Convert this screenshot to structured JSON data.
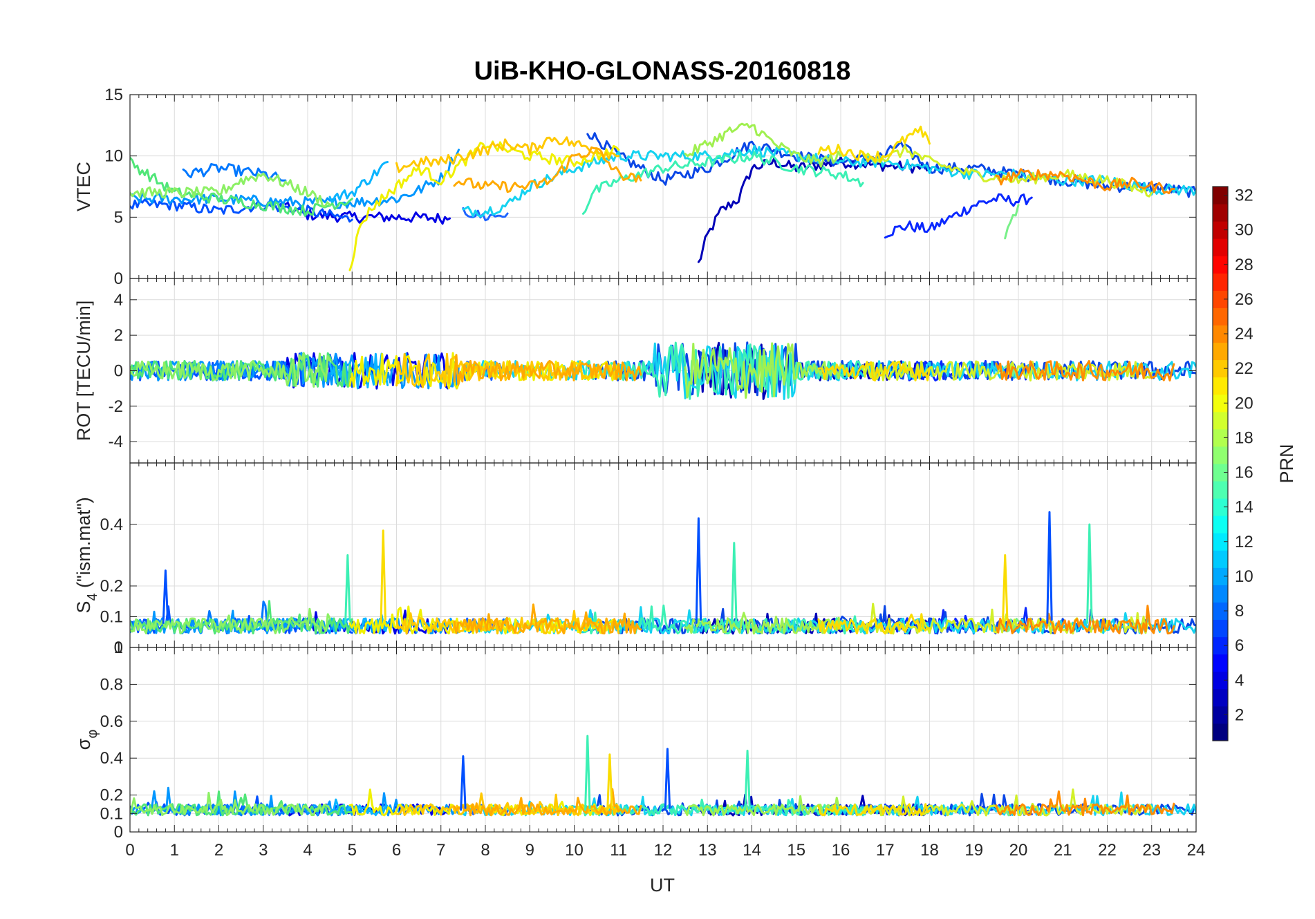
{
  "chart_data": {
    "type": "line",
    "title": "UiB-KHO-GLONASS-20160818",
    "xlabel": "UT",
    "xlim": [
      0,
      24
    ],
    "xticks": [
      0,
      1,
      2,
      3,
      4,
      5,
      6,
      7,
      8,
      9,
      10,
      11,
      12,
      13,
      14,
      15,
      16,
      17,
      18,
      19,
      20,
      21,
      22,
      23,
      24
    ],
    "panels": [
      {
        "id": "vtec",
        "ylabel": "VTEC",
        "ylim": [
          0,
          15
        ],
        "yticks": [
          0,
          5,
          10,
          15
        ],
        "ytick_labels": [
          "0",
          "5",
          "10",
          "15"
        ]
      },
      {
        "id": "rot",
        "ylabel": "ROT [TECU/min]",
        "ylim": [
          -5.2,
          5.2
        ],
        "yticks": [
          -4,
          -2,
          0,
          2,
          4
        ],
        "ytick_labels": [
          "-4",
          "-2",
          "0",
          "2",
          "4"
        ]
      },
      {
        "id": "s4",
        "ylabel": "S",
        "ylabel_sub": "4",
        "ylabel_suffix": " (\"ism.mat\")",
        "ylim": [
          0,
          0.6
        ],
        "yticks": [
          0,
          0.1,
          0.2,
          0.4
        ],
        "ytick_labels": [
          "0",
          "0.1",
          "0.2",
          "0.4"
        ],
        "extra_tick_label": "1"
      },
      {
        "id": "sigma",
        "ylabel": "σ",
        "ylabel_sub": "φ",
        "ylim": [
          0,
          1
        ],
        "yticks": [
          0,
          0.1,
          0.2,
          0.4,
          0.6,
          0.8
        ],
        "ytick_labels": [
          "0",
          "0.1",
          "0.2",
          "0.4",
          "0.6",
          "0.8"
        ]
      }
    ],
    "colorbar": {
      "label": "PRN",
      "range": [
        1,
        32
      ],
      "ticks": [
        2,
        4,
        6,
        8,
        10,
        12,
        14,
        16,
        18,
        20,
        22,
        24,
        26,
        28,
        30,
        32
      ],
      "tick_labels": [
        "2",
        "4",
        "6",
        "8",
        "10",
        "12",
        "14",
        "16",
        "18",
        "20",
        "22",
        "24",
        "26",
        "28",
        "30",
        "32"
      ],
      "colormap": "jet"
    },
    "series": [
      {
        "prn": 2,
        "name": "PRN 2",
        "color": "#0000b8",
        "vtec": [
          [
            12.8,
            1.2
          ],
          [
            13,
            3.5
          ],
          [
            13.3,
            5.5
          ],
          [
            13.7,
            6.5
          ],
          [
            14,
            9
          ],
          [
            14.5,
            9.5
          ],
          [
            15,
            9
          ],
          [
            16,
            9.5
          ],
          [
            17,
            9.2
          ],
          [
            18,
            9
          ]
        ]
      },
      {
        "prn": 3,
        "name": "PRN 3",
        "color": "#0000e6",
        "vtec": [
          [
            3.5,
            5.8
          ],
          [
            4,
            5.2
          ],
          [
            5,
            5
          ],
          [
            6,
            5
          ],
          [
            7.2,
            4.9
          ]
        ]
      },
      {
        "prn": 4,
        "name": "PRN 4",
        "color": "#0a28ff",
        "vtec": [
          [
            17,
            3.7
          ],
          [
            17.5,
            4.3
          ],
          [
            18,
            4
          ],
          [
            18.5,
            5
          ],
          [
            19,
            6
          ],
          [
            19.5,
            6.5
          ],
          [
            20,
            6.3
          ],
          [
            20.3,
            6.6
          ]
        ]
      },
      {
        "prn": 5,
        "name": "PRN 5",
        "color": "#0050ff",
        "vtec": [
          [
            0,
            6
          ],
          [
            1,
            6
          ],
          [
            2,
            5.5
          ],
          [
            3,
            6
          ],
          [
            4,
            5.5
          ],
          [
            5,
            4.8
          ]
        ]
      },
      {
        "prn": 6,
        "name": "PRN 6",
        "color": "#0a46e6",
        "vtec": [
          [
            10.3,
            12
          ],
          [
            11,
            10
          ],
          [
            12,
            8
          ],
          [
            13,
            9
          ],
          [
            14,
            11
          ],
          [
            15,
            10
          ],
          [
            16,
            9.5
          ],
          [
            17,
            10
          ],
          [
            17.3,
            11
          ],
          [
            18,
            9
          ],
          [
            19,
            9
          ],
          [
            20,
            8.5
          ],
          [
            21,
            8
          ],
          [
            22,
            7.5
          ],
          [
            23,
            7.5
          ],
          [
            24,
            7
          ]
        ]
      },
      {
        "prn": 7,
        "name": "PRN 7",
        "color": "#1e64ff",
        "vtec": [
          [
            7.5,
            5.5
          ],
          [
            8,
            5
          ],
          [
            8.5,
            5.3
          ]
        ]
      },
      {
        "prn": 8,
        "name": "PRN 8",
        "color": "#0078ff",
        "vtec": [
          [
            1.2,
            8.5
          ],
          [
            2,
            9
          ],
          [
            3,
            8.5
          ],
          [
            3.5,
            8
          ]
        ]
      },
      {
        "prn": 9,
        "name": "PRN 9",
        "color": "#0096ff",
        "vtec": [
          [
            0,
            6.5
          ],
          [
            1,
            6.5
          ],
          [
            2,
            6.5
          ],
          [
            3,
            6.3
          ],
          [
            4,
            6.2
          ],
          [
            5,
            6.2
          ],
          [
            6,
            6.5
          ],
          [
            6.5,
            7.2
          ],
          [
            7,
            8.2
          ],
          [
            7.4,
            10.5
          ]
        ]
      },
      {
        "prn": 11,
        "name": "PRN 11",
        "color": "#0ab4ff",
        "vtec": [
          [
            4.5,
            6.5
          ],
          [
            5,
            7
          ],
          [
            5.5,
            8.5
          ],
          [
            5.8,
            9.5
          ]
        ]
      },
      {
        "prn": 12,
        "name": "PRN 12",
        "color": "#14d2f0",
        "vtec": [
          [
            7.5,
            5.5
          ],
          [
            8,
            5.5
          ],
          [
            8.5,
            6
          ],
          [
            9,
            7.5
          ],
          [
            10,
            9
          ],
          [
            11,
            10
          ],
          [
            12,
            10
          ],
          [
            13,
            10
          ],
          [
            14,
            10.5
          ],
          [
            15,
            10
          ],
          [
            16,
            9.5
          ],
          [
            17,
            9.5
          ],
          [
            18,
            9
          ],
          [
            19,
            8.5
          ],
          [
            20,
            8.5
          ],
          [
            21,
            8
          ],
          [
            22,
            8
          ],
          [
            23,
            7.3
          ],
          [
            24,
            7.2
          ]
        ]
      },
      {
        "prn": 14,
        "name": "PRN 14",
        "color": "#3cf0b4",
        "vtec": [
          [
            10.2,
            5.3
          ],
          [
            10.4,
            7
          ],
          [
            11,
            8
          ],
          [
            12,
            9
          ],
          [
            13,
            9.5
          ],
          [
            14,
            10
          ],
          [
            15,
            9
          ],
          [
            16,
            8.5
          ],
          [
            16.5,
            7.8
          ]
        ]
      },
      {
        "prn": 15,
        "name": "PRN 15",
        "color": "#78f088",
        "vtec": [
          [
            19.7,
            3.6
          ],
          [
            20,
            6
          ]
        ]
      },
      {
        "prn": 16,
        "name": "PRN 16",
        "color": "#50e678",
        "vtec": [
          [
            0,
            9.5
          ],
          [
            1,
            7
          ],
          [
            2,
            6.5
          ],
          [
            3,
            6
          ],
          [
            4,
            5.5
          ],
          [
            4.5,
            6
          ],
          [
            5,
            6.5
          ]
        ]
      },
      {
        "prn": 17,
        "name": "PRN 17",
        "color": "#8cf064",
        "vtec": [
          [
            0,
            7
          ],
          [
            1,
            7
          ],
          [
            2,
            7
          ],
          [
            2.5,
            8
          ],
          [
            3,
            8.5
          ],
          [
            4,
            7
          ],
          [
            4.5,
            6
          ]
        ]
      },
      {
        "prn": 18,
        "name": "PRN 18",
        "color": "#a0f050",
        "vtec": [
          [
            12.5,
            10
          ],
          [
            13,
            11
          ],
          [
            13.5,
            12
          ],
          [
            14,
            12.5
          ],
          [
            14.5,
            11
          ],
          [
            15,
            10
          ],
          [
            15.5,
            9.5
          ],
          [
            16,
            10
          ]
        ]
      },
      {
        "prn": 19,
        "name": "PRN 19",
        "color": "#d2f028",
        "vtec": [
          [
            16.5,
            10
          ],
          [
            17,
            9.8
          ],
          [
            17.5,
            10.5
          ],
          [
            18,
            9.5
          ],
          [
            19,
            8.5
          ],
          [
            20,
            8
          ],
          [
            21,
            8.5
          ],
          [
            22,
            8
          ],
          [
            23,
            7
          ]
        ]
      },
      {
        "prn": 20,
        "name": "PRN 20",
        "color": "#f0f000",
        "vtec": [
          [
            4.95,
            0.9
          ],
          [
            5.2,
            4.5
          ],
          [
            5.5,
            6
          ],
          [
            6,
            7.5
          ],
          [
            6.5,
            9
          ],
          [
            7,
            8
          ],
          [
            7.5,
            9.5
          ],
          [
            8,
            11
          ],
          [
            9,
            10
          ],
          [
            10,
            9.5
          ],
          [
            11,
            10.5
          ]
        ]
      },
      {
        "prn": 21,
        "name": "PRN 21",
        "color": "#fadc00",
        "vtec": [
          [
            15.5,
            10.5
          ],
          [
            16,
            10.5
          ],
          [
            16.5,
            10
          ],
          [
            17,
            10
          ],
          [
            17.5,
            11.5
          ],
          [
            17.8,
            12
          ],
          [
            18,
            11
          ]
        ]
      },
      {
        "prn": 22,
        "name": "PRN 22",
        "color": "#ffc800",
        "vtec": [
          [
            6,
            9
          ],
          [
            6.5,
            9.5
          ],
          [
            7,
            9.5
          ],
          [
            7.5,
            10
          ],
          [
            8,
            10.5
          ],
          [
            8.5,
            11
          ],
          [
            9,
            10.5
          ],
          [
            9.5,
            11.5
          ],
          [
            10,
            11
          ],
          [
            10.5,
            10.5
          ],
          [
            11,
            10
          ]
        ]
      },
      {
        "prn": 23,
        "name": "PRN 23",
        "color": "#ffaa00",
        "vtec": [
          [
            7.3,
            8
          ],
          [
            8,
            7.5
          ],
          [
            9,
            7.5
          ],
          [
            9.5,
            8
          ],
          [
            10,
            10
          ],
          [
            10.5,
            10.5
          ],
          [
            11,
            8.5
          ],
          [
            11.5,
            8
          ]
        ]
      },
      {
        "prn": 24,
        "name": "PRN 24",
        "color": "#ff8c00",
        "vtec": [
          [
            19.5,
            8
          ],
          [
            20,
            8.5
          ],
          [
            21,
            8.5
          ],
          [
            21.5,
            8
          ],
          [
            22,
            7.5
          ],
          [
            22.5,
            7.8
          ],
          [
            23,
            7.5
          ],
          [
            23.5,
            7.3
          ]
        ]
      }
    ],
    "annotations": [
      {
        "panel": "s4",
        "description": "S4 spikes",
        "points": [
          [
            0.8,
            0.25
          ],
          [
            4.9,
            0.3
          ],
          [
            5.7,
            0.38
          ],
          [
            12.8,
            0.42
          ],
          [
            13.6,
            0.34
          ],
          [
            19.7,
            0.3
          ],
          [
            20.7,
            0.44
          ],
          [
            21.6,
            0.4
          ]
        ]
      },
      {
        "panel": "sigma",
        "description": "sigma_phi spikes",
        "points": [
          [
            7.5,
            0.41
          ],
          [
            10.3,
            0.52
          ],
          [
            10.8,
            0.42
          ],
          [
            12.1,
            0.45
          ],
          [
            13.9,
            0.44
          ]
        ]
      }
    ]
  }
}
